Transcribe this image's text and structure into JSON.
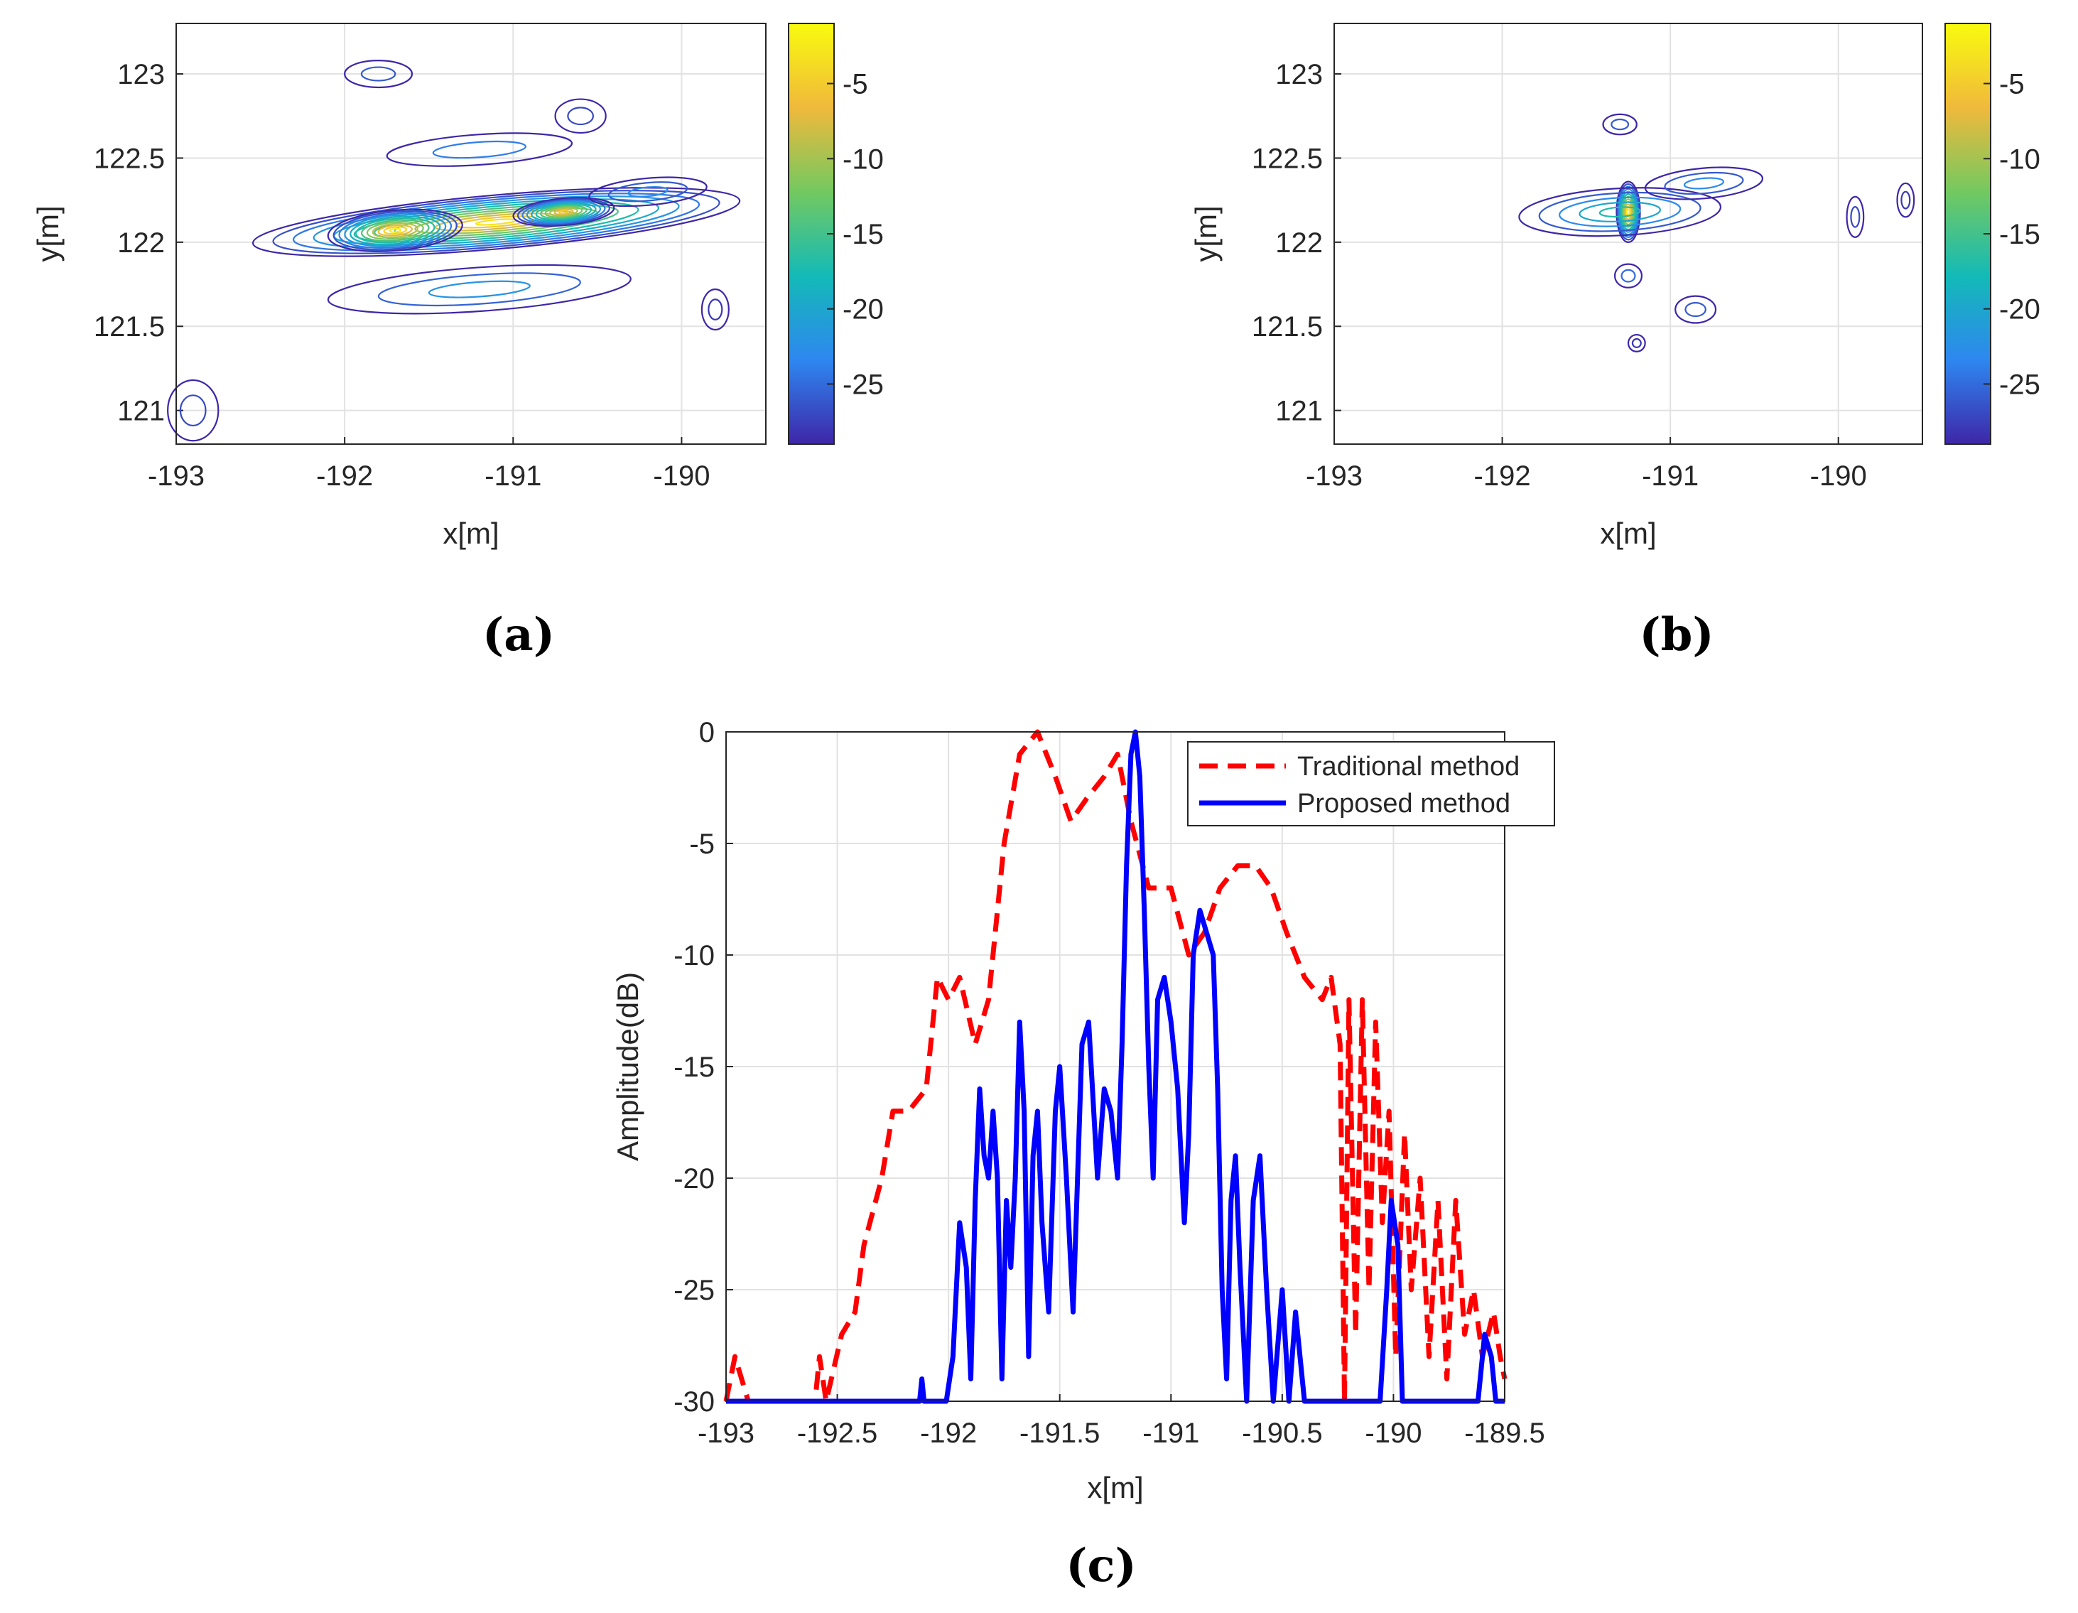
{
  "colors": {
    "traditional": "#ff0000",
    "proposed": "#0000ff",
    "grid": "#e2e2e2",
    "axis": "#262626",
    "contour_low": "#3e26a8",
    "contour_high": "#f9fb0e"
  },
  "chart_data": [
    {
      "id": "a",
      "type": "heatmap",
      "caption": "(a)",
      "title": "",
      "xlabel": "x[m]",
      "ylabel": "y[m]",
      "xlim": [
        -193,
        -189.5
      ],
      "ylim": [
        120.8,
        123.3
      ],
      "xticks": [
        -193,
        -192,
        -191,
        -190
      ],
      "xtick_labels": [
        "-193",
        "-192",
        "-191",
        "-190"
      ],
      "yticks": [
        121,
        121.5,
        122,
        122.5,
        123
      ],
      "ytick_labels": [
        "121",
        "121.5",
        "122",
        "122.5",
        "123"
      ],
      "colorbar": {
        "range": [
          -29,
          -1
        ],
        "ticks": [
          -5,
          -10,
          -15,
          -20,
          -25
        ],
        "tick_labels": [
          "-5",
          "-10",
          "-15",
          "-20",
          "-25"
        ]
      },
      "blobs": [
        {
          "cx": -191.1,
          "cy": 122.12,
          "rx": 1.45,
          "ry": 0.16,
          "rot": 5,
          "level": -3
        },
        {
          "cx": -191.7,
          "cy": 122.07,
          "rx": 0.4,
          "ry": 0.12,
          "rot": 5,
          "level": -2
        },
        {
          "cx": -190.7,
          "cy": 122.18,
          "rx": 0.3,
          "ry": 0.08,
          "rot": 5,
          "level": -5
        },
        {
          "cx": -191.2,
          "cy": 121.72,
          "rx": 0.9,
          "ry": 0.13,
          "rot": 4,
          "level": -22
        },
        {
          "cx": -191.2,
          "cy": 122.55,
          "rx": 0.55,
          "ry": 0.09,
          "rot": 4,
          "level": -24
        },
        {
          "cx": -190.2,
          "cy": 122.3,
          "rx": 0.35,
          "ry": 0.08,
          "rot": 5,
          "level": -23
        },
        {
          "cx": -191.8,
          "cy": 123.0,
          "rx": 0.2,
          "ry": 0.08,
          "rot": 0,
          "level": -26
        },
        {
          "cx": -192.9,
          "cy": 121.0,
          "rx": 0.15,
          "ry": 0.18,
          "rot": 0,
          "level": -27
        },
        {
          "cx": -190.6,
          "cy": 122.75,
          "rx": 0.15,
          "ry": 0.1,
          "rot": 0,
          "level": -27
        },
        {
          "cx": -189.8,
          "cy": 121.6,
          "rx": 0.08,
          "ry": 0.12,
          "rot": 0,
          "level": -28
        }
      ]
    },
    {
      "id": "b",
      "type": "heatmap",
      "caption": "(b)",
      "title": "",
      "xlabel": "x[m]",
      "ylabel": "y[m]",
      "xlim": [
        -193,
        -189.5
      ],
      "ylim": [
        120.8,
        123.3
      ],
      "xticks": [
        -193,
        -192,
        -191,
        -190
      ],
      "xtick_labels": [
        "-193",
        "-192",
        "-191",
        "-190"
      ],
      "yticks": [
        121,
        121.5,
        122,
        122.5,
        123
      ],
      "ytick_labels": [
        "121",
        "121.5",
        "122",
        "122.5",
        "123"
      ],
      "colorbar": {
        "range": [
          -29,
          -1
        ],
        "ticks": [
          -5,
          -10,
          -15,
          -20,
          -25
        ],
        "tick_labels": [
          "-5",
          "-10",
          "-15",
          "-20",
          "-25"
        ]
      },
      "blobs": [
        {
          "cx": -191.25,
          "cy": 122.18,
          "rx": 0.07,
          "ry": 0.18,
          "rot": 0,
          "level": -2
        },
        {
          "cx": -191.3,
          "cy": 122.18,
          "rx": 0.6,
          "ry": 0.14,
          "rot": 3,
          "level": -17
        },
        {
          "cx": -190.8,
          "cy": 122.35,
          "rx": 0.35,
          "ry": 0.09,
          "rot": 5,
          "level": -23
        },
        {
          "cx": -191.3,
          "cy": 122.7,
          "rx": 0.1,
          "ry": 0.06,
          "rot": 0,
          "level": -26
        },
        {
          "cx": -191.25,
          "cy": 121.8,
          "rx": 0.08,
          "ry": 0.07,
          "rot": 0,
          "level": -25
        },
        {
          "cx": -190.85,
          "cy": 121.6,
          "rx": 0.12,
          "ry": 0.08,
          "rot": 0,
          "level": -26
        },
        {
          "cx": -189.9,
          "cy": 122.15,
          "rx": 0.05,
          "ry": 0.12,
          "rot": 0,
          "level": -27
        },
        {
          "cx": -189.6,
          "cy": 122.25,
          "rx": 0.05,
          "ry": 0.1,
          "rot": 0,
          "level": -28
        },
        {
          "cx": -191.2,
          "cy": 121.4,
          "rx": 0.05,
          "ry": 0.05,
          "rot": 0,
          "level": -28
        }
      ]
    },
    {
      "id": "c",
      "type": "line",
      "caption": "(c)",
      "title": "",
      "xlabel": "x[m]",
      "ylabel": "Amplitude(dB)",
      "xlim": [
        -193,
        -189.5
      ],
      "ylim": [
        -30,
        0
      ],
      "xticks": [
        -193,
        -192.5,
        -192,
        -191.5,
        -191,
        -190.5,
        -190,
        -189.5
      ],
      "xtick_labels": [
        "-193",
        "-192.5",
        "-192",
        "-191.5",
        "-191",
        "-190.5",
        "-190",
        "-189.5"
      ],
      "yticks": [
        0,
        -5,
        -10,
        -15,
        -20,
        -25,
        -30
      ],
      "ytick_labels": [
        "0",
        "-5",
        "-10",
        "-15",
        "-20",
        "-25",
        "-30"
      ],
      "legend_position": "top-right",
      "series": [
        {
          "name": "Traditional method",
          "style": "dashed",
          "color": "#ff0000",
          "points": [
            [
              -193.0,
              -30
            ],
            [
              -192.96,
              -28
            ],
            [
              -192.93,
              -29
            ],
            [
              -192.9,
              -30
            ],
            [
              -192.6,
              -30
            ],
            [
              -192.58,
              -28
            ],
            [
              -192.55,
              -30
            ],
            [
              -192.48,
              -27
            ],
            [
              -192.42,
              -26
            ],
            [
              -192.38,
              -23
            ],
            [
              -192.3,
              -20
            ],
            [
              -192.25,
              -17
            ],
            [
              -192.18,
              -17
            ],
            [
              -192.1,
              -16
            ],
            [
              -192.05,
              -11
            ],
            [
              -192.0,
              -12
            ],
            [
              -191.95,
              -11
            ],
            [
              -191.88,
              -14
            ],
            [
              -191.82,
              -12
            ],
            [
              -191.75,
              -5
            ],
            [
              -191.68,
              -1
            ],
            [
              -191.6,
              0
            ],
            [
              -191.52,
              -2
            ],
            [
              -191.45,
              -4
            ],
            [
              -191.38,
              -3
            ],
            [
              -191.3,
              -2
            ],
            [
              -191.24,
              -1
            ],
            [
              -191.18,
              -4
            ],
            [
              -191.1,
              -7
            ],
            [
              -191.0,
              -7
            ],
            [
              -190.92,
              -10
            ],
            [
              -190.85,
              -9
            ],
            [
              -190.78,
              -7
            ],
            [
              -190.7,
              -6
            ],
            [
              -190.62,
              -6
            ],
            [
              -190.55,
              -7
            ],
            [
              -190.48,
              -9
            ],
            [
              -190.4,
              -11
            ],
            [
              -190.32,
              -12
            ],
            [
              -190.28,
              -11
            ],
            [
              -190.24,
              -14
            ],
            [
              -190.22,
              -30
            ],
            [
              -190.2,
              -12
            ],
            [
              -190.17,
              -27
            ],
            [
              -190.14,
              -12
            ],
            [
              -190.11,
              -25
            ],
            [
              -190.08,
              -13
            ],
            [
              -190.05,
              -22
            ],
            [
              -190.02,
              -17
            ],
            [
              -189.99,
              -28
            ],
            [
              -189.95,
              -18
            ],
            [
              -189.92,
              -25
            ],
            [
              -189.88,
              -20
            ],
            [
              -189.84,
              -28
            ],
            [
              -189.8,
              -21
            ],
            [
              -189.76,
              -29
            ],
            [
              -189.72,
              -21
            ],
            [
              -189.68,
              -27
            ],
            [
              -189.64,
              -25
            ],
            [
              -189.6,
              -28
            ],
            [
              -189.55,
              -26
            ],
            [
              -189.52,
              -28
            ],
            [
              -189.5,
              -29
            ]
          ]
        },
        {
          "name": "Proposed method",
          "style": "solid",
          "color": "#0000ff",
          "points": [
            [
              -193.0,
              -30
            ],
            [
              -192.13,
              -30
            ],
            [
              -192.12,
              -29
            ],
            [
              -192.11,
              -30
            ],
            [
              -192.01,
              -30
            ],
            [
              -191.98,
              -28
            ],
            [
              -191.95,
              -22
            ],
            [
              -191.92,
              -24
            ],
            [
              -191.9,
              -29
            ],
            [
              -191.88,
              -21
            ],
            [
              -191.86,
              -16
            ],
            [
              -191.84,
              -19
            ],
            [
              -191.82,
              -20
            ],
            [
              -191.8,
              -17
            ],
            [
              -191.78,
              -20
            ],
            [
              -191.76,
              -29
            ],
            [
              -191.74,
              -21
            ],
            [
              -191.72,
              -24
            ],
            [
              -191.7,
              -20
            ],
            [
              -191.68,
              -13
            ],
            [
              -191.66,
              -17
            ],
            [
              -191.64,
              -28
            ],
            [
              -191.62,
              -19
            ],
            [
              -191.6,
              -17
            ],
            [
              -191.58,
              -22
            ],
            [
              -191.55,
              -26
            ],
            [
              -191.52,
              -17
            ],
            [
              -191.5,
              -15
            ],
            [
              -191.47,
              -20
            ],
            [
              -191.44,
              -26
            ],
            [
              -191.4,
              -14
            ],
            [
              -191.37,
              -13
            ],
            [
              -191.33,
              -20
            ],
            [
              -191.3,
              -16
            ],
            [
              -191.27,
              -17
            ],
            [
              -191.24,
              -20
            ],
            [
              -191.22,
              -14
            ],
            [
              -191.2,
              -6
            ],
            [
              -191.18,
              -1
            ],
            [
              -191.16,
              0
            ],
            [
              -191.14,
              -2
            ],
            [
              -191.12,
              -8
            ],
            [
              -191.1,
              -15
            ],
            [
              -191.08,
              -20
            ],
            [
              -191.06,
              -12
            ],
            [
              -191.03,
              -11
            ],
            [
              -191.0,
              -13
            ],
            [
              -190.97,
              -16
            ],
            [
              -190.94,
              -22
            ],
            [
              -190.92,
              -18
            ],
            [
              -190.9,
              -10
            ],
            [
              -190.87,
              -8
            ],
            [
              -190.84,
              -9
            ],
            [
              -190.81,
              -10
            ],
            [
              -190.79,
              -16
            ],
            [
              -190.77,
              -25
            ],
            [
              -190.75,
              -29
            ],
            [
              -190.73,
              -21
            ],
            [
              -190.71,
              -19
            ],
            [
              -190.69,
              -24
            ],
            [
              -190.66,
              -30
            ],
            [
              -190.63,
              -21
            ],
            [
              -190.6,
              -19
            ],
            [
              -190.57,
              -25
            ],
            [
              -190.54,
              -30
            ],
            [
              -190.5,
              -25
            ],
            [
              -190.47,
              -30
            ],
            [
              -190.44,
              -26
            ],
            [
              -190.4,
              -30
            ],
            [
              -190.06,
              -30
            ],
            [
              -190.03,
              -25
            ],
            [
              -190.01,
              -21
            ],
            [
              -189.98,
              -23
            ],
            [
              -189.96,
              -30
            ],
            [
              -189.62,
              -30
            ],
            [
              -189.59,
              -27
            ],
            [
              -189.56,
              -28
            ],
            [
              -189.54,
              -30
            ],
            [
              -189.5,
              -30
            ]
          ]
        }
      ]
    }
  ]
}
